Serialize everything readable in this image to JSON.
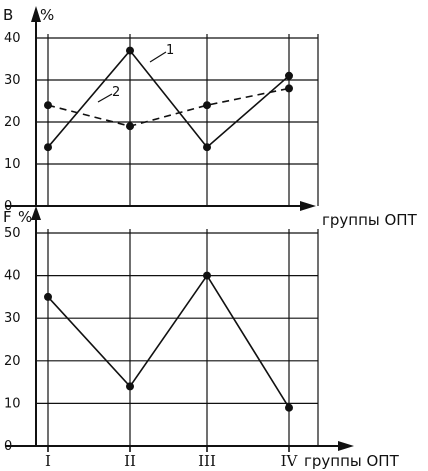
{
  "chart_data": [
    {
      "type": "line",
      "y_axis_letter": "B",
      "y_unit": "%",
      "xlabel": "группы ОПТ",
      "ylim": [
        0,
        40
      ],
      "yticks": [
        "0",
        "10",
        "20",
        "30",
        "40"
      ],
      "grid": true,
      "series": [
        {
          "name": "1",
          "style": "solid",
          "values": [
            14,
            37,
            14,
            31
          ]
        },
        {
          "name": "2",
          "style": "dashed",
          "values": [
            24,
            19,
            24,
            28
          ]
        }
      ]
    },
    {
      "type": "line",
      "y_axis_letter": "F",
      "y_unit": "%",
      "xlabel": "группы ОПТ",
      "categories": [
        "I",
        "II",
        "III",
        "IV"
      ],
      "ylim": [
        0,
        50
      ],
      "yticks": [
        "0",
        "10",
        "20",
        "30",
        "40",
        "50"
      ],
      "grid": true,
      "series": [
        {
          "style": "solid",
          "values": [
            35,
            14,
            40,
            9
          ]
        }
      ]
    }
  ],
  "colors": {
    "ink": "#111111",
    "paper": "#ffffff"
  }
}
